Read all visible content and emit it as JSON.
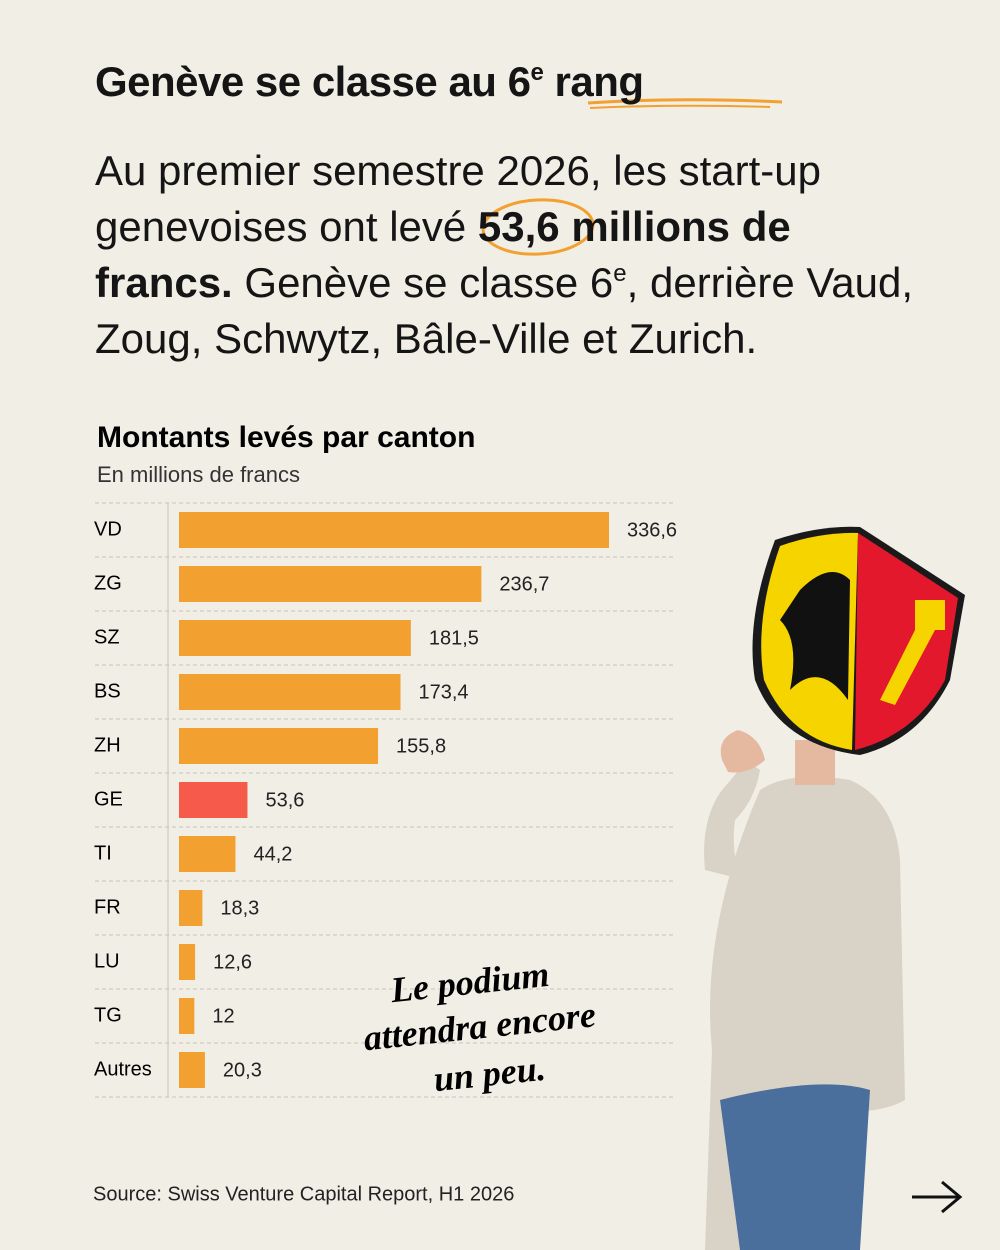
{
  "headline": [
    "Genève se classe au 6",
    "e",
    " rang"
  ],
  "paragraph": [
    "Au premier semestre 2026, les start-up genevoises ont levé ",
    "53,6",
    " millions de francs.",
    " Genève se classe 6",
    "e",
    ", derrière Vaud, Zoug, Schwytz, Bâle-Ville et Zurich."
  ],
  "chart_data": {
    "type": "hbar",
    "title": "Montants levés par canton",
    "subtitle": "En millions de francs",
    "categories": [
      "VD",
      "ZG",
      "SZ",
      "BS",
      "ZH",
      "GE",
      "TI",
      "FR",
      "LU",
      "TG",
      "Autres"
    ],
    "values": [
      336.6,
      236.7,
      181.5,
      173.4,
      155.8,
      53.6,
      44.2,
      18.3,
      12.6,
      12,
      20.3
    ],
    "value_labels": [
      "336,6",
      "236,7",
      "181,5",
      "173,4",
      "155,8",
      "53,6",
      "44,2",
      "18,3",
      "12,6",
      "12",
      "20,3"
    ],
    "colors": [
      "#f2a130",
      "#f2a130",
      "#f2a130",
      "#f2a130",
      "#f2a130",
      "#f65a4b",
      "#f2a130",
      "#f2a130",
      "#f2a130",
      "#f2a130",
      "#f2a130"
    ]
  },
  "annotation": [
    "Le podium",
    "attendra encore",
    "un peu."
  ],
  "source": "Source: Swiss Venture Capital Report, H1 2026"
}
